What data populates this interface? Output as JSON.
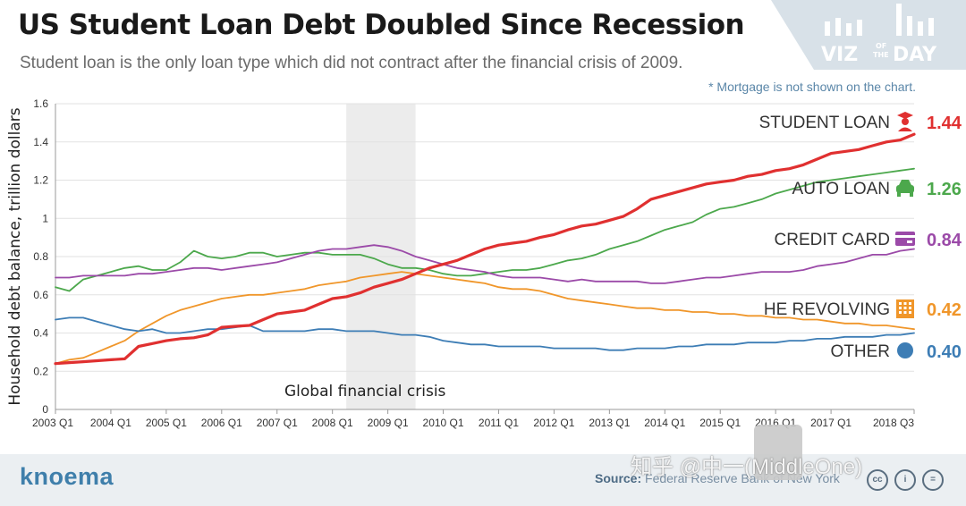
{
  "header": {
    "title": "US Student Loan Debt Doubled Since Recession",
    "subtitle": "Student loan is the only loan type which did not contract after the financial crisis of 2009.",
    "logo_text": "VIZ OF THE DAY",
    "logo_viz": "VIZ",
    "logo_of": "OF",
    "logo_the": "THE",
    "logo_day": "DAY"
  },
  "note": "* Mortgage is not shown on the chart.",
  "chart_data": {
    "type": "line",
    "title": "US Student Loan Debt Doubled Since Recession",
    "ylabel": "Household debt balance, trillion dollars",
    "xlabel": "",
    "ylim": [
      0,
      1.6
    ],
    "yticks": [
      "0",
      "0.2",
      "0.4",
      "0.6",
      "0.8",
      "1",
      "1.2",
      "1.4",
      "1.6"
    ],
    "xticks": [
      "2003 Q1",
      "2004 Q1",
      "2005 Q1",
      "2006 Q1",
      "2007 Q1",
      "2008 Q1",
      "2009 Q1",
      "2010 Q1",
      "2011 Q1",
      "2012 Q1",
      "2013 Q1",
      "2014 Q1",
      "2015 Q1",
      "2016 Q1",
      "2017 Q1",
      "2018 Q3"
    ],
    "grid": true,
    "shaded_region": {
      "label": "Global financial crisis",
      "from": 21,
      "to": 26
    },
    "series": [
      {
        "name": "STUDENT LOAN",
        "final_label": "1.44",
        "color": "#e03030",
        "icon": "graduate-icon",
        "width": 3.2,
        "values": [
          0.24,
          0.245,
          0.25,
          0.255,
          0.26,
          0.265,
          0.33,
          0.345,
          0.36,
          0.37,
          0.375,
          0.39,
          0.43,
          0.435,
          0.44,
          0.47,
          0.5,
          0.51,
          0.52,
          0.55,
          0.58,
          0.59,
          0.61,
          0.64,
          0.66,
          0.68,
          0.71,
          0.74,
          0.76,
          0.78,
          0.81,
          0.84,
          0.86,
          0.87,
          0.88,
          0.9,
          0.915,
          0.94,
          0.96,
          0.97,
          0.99,
          1.01,
          1.05,
          1.1,
          1.12,
          1.14,
          1.16,
          1.18,
          1.19,
          1.2,
          1.22,
          1.23,
          1.25,
          1.26,
          1.28,
          1.31,
          1.34,
          1.35,
          1.36,
          1.38,
          1.4,
          1.41,
          1.44
        ]
      },
      {
        "name": "AUTO LOAN",
        "final_label": "1.26",
        "color": "#4ca84c",
        "icon": "car-icon",
        "width": 1.8,
        "values": [
          0.64,
          0.62,
          0.68,
          0.7,
          0.72,
          0.74,
          0.75,
          0.73,
          0.73,
          0.77,
          0.83,
          0.8,
          0.79,
          0.8,
          0.82,
          0.82,
          0.8,
          0.81,
          0.82,
          0.82,
          0.81,
          0.81,
          0.81,
          0.79,
          0.76,
          0.74,
          0.74,
          0.73,
          0.71,
          0.7,
          0.7,
          0.71,
          0.72,
          0.73,
          0.73,
          0.74,
          0.76,
          0.78,
          0.79,
          0.81,
          0.84,
          0.86,
          0.88,
          0.91,
          0.94,
          0.96,
          0.98,
          1.02,
          1.05,
          1.06,
          1.08,
          1.1,
          1.13,
          1.15,
          1.17,
          1.19,
          1.2,
          1.21,
          1.22,
          1.23,
          1.24,
          1.25,
          1.26
        ]
      },
      {
        "name": "CREDIT CARD",
        "final_label": "0.84",
        "color": "#9b4aa8",
        "icon": "credit-card-icon",
        "width": 1.8,
        "values": [
          0.69,
          0.69,
          0.7,
          0.7,
          0.7,
          0.7,
          0.71,
          0.71,
          0.72,
          0.73,
          0.74,
          0.74,
          0.73,
          0.74,
          0.75,
          0.76,
          0.77,
          0.79,
          0.81,
          0.83,
          0.84,
          0.84,
          0.85,
          0.86,
          0.85,
          0.83,
          0.8,
          0.78,
          0.76,
          0.74,
          0.73,
          0.72,
          0.7,
          0.69,
          0.69,
          0.69,
          0.68,
          0.67,
          0.68,
          0.67,
          0.67,
          0.67,
          0.67,
          0.66,
          0.66,
          0.67,
          0.68,
          0.69,
          0.69,
          0.7,
          0.71,
          0.72,
          0.72,
          0.72,
          0.73,
          0.75,
          0.76,
          0.77,
          0.79,
          0.81,
          0.81,
          0.83,
          0.84
        ]
      },
      {
        "name": "HE REVOLVING",
        "final_label": "0.42",
        "color": "#f0962a",
        "icon": "building-icon",
        "width": 1.8,
        "values": [
          0.24,
          0.26,
          0.27,
          0.3,
          0.33,
          0.36,
          0.41,
          0.45,
          0.49,
          0.52,
          0.54,
          0.56,
          0.58,
          0.59,
          0.6,
          0.6,
          0.61,
          0.62,
          0.63,
          0.65,
          0.66,
          0.67,
          0.69,
          0.7,
          0.71,
          0.72,
          0.71,
          0.7,
          0.69,
          0.68,
          0.67,
          0.66,
          0.64,
          0.63,
          0.63,
          0.62,
          0.6,
          0.58,
          0.57,
          0.56,
          0.55,
          0.54,
          0.53,
          0.53,
          0.52,
          0.52,
          0.51,
          0.51,
          0.5,
          0.5,
          0.49,
          0.49,
          0.48,
          0.48,
          0.47,
          0.47,
          0.46,
          0.45,
          0.45,
          0.44,
          0.44,
          0.43,
          0.42
        ]
      },
      {
        "name": "OTHER",
        "final_label": "0.40",
        "color": "#3d7db5",
        "icon": "dot-icon",
        "width": 1.8,
        "values": [
          0.47,
          0.48,
          0.48,
          0.46,
          0.44,
          0.42,
          0.41,
          0.42,
          0.4,
          0.4,
          0.41,
          0.42,
          0.42,
          0.43,
          0.44,
          0.41,
          0.41,
          0.41,
          0.41,
          0.42,
          0.42,
          0.41,
          0.41,
          0.41,
          0.4,
          0.39,
          0.39,
          0.38,
          0.36,
          0.35,
          0.34,
          0.34,
          0.33,
          0.33,
          0.33,
          0.33,
          0.32,
          0.32,
          0.32,
          0.32,
          0.31,
          0.31,
          0.32,
          0.32,
          0.32,
          0.33,
          0.33,
          0.34,
          0.34,
          0.34,
          0.35,
          0.35,
          0.35,
          0.36,
          0.36,
          0.37,
          0.37,
          0.38,
          0.38,
          0.38,
          0.39,
          0.39,
          0.4
        ]
      }
    ]
  },
  "footer": {
    "brand": "knoema",
    "source_label": "Source:",
    "source_text": "Federal Reserve Bank of New York",
    "watermark": "知乎 @中一(MiddleOne)"
  }
}
